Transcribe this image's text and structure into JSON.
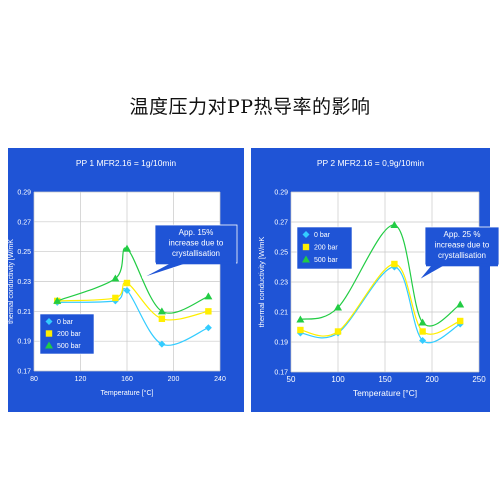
{
  "page": {
    "title": "温度压力对PP热导率的影响"
  },
  "colors": {
    "panel_bg": "#1f54d6",
    "plot_bg": "#ffffff",
    "grid": "#c8c8c8",
    "series": [
      "#33ccff",
      "#ffee00",
      "#22cc44"
    ]
  },
  "chart_data": [
    {
      "type": "scatter",
      "title": "PP 1 MFR2.16 = 1g/10min",
      "xlabel": "Temperature [°C]",
      "ylabel": "thermal conductivity [W/mK",
      "xlim": [
        80,
        240
      ],
      "ylim": [
        0.17,
        0.29
      ],
      "xticks": [
        80,
        120,
        160,
        200,
        240
      ],
      "yticks": [
        0.17,
        0.19,
        0.21,
        0.23,
        0.25,
        0.27,
        0.29
      ],
      "grid": true,
      "legend_position": "bottom-left",
      "series": [
        {
          "name": "0 bar",
          "marker": "diamond",
          "x": [
            100,
            150,
            160,
            190,
            230
          ],
          "y": [
            0.216,
            0.217,
            0.224,
            0.188,
            0.199
          ]
        },
        {
          "name": "200 bar",
          "marker": "square",
          "x": [
            100,
            150,
            160,
            190,
            230
          ],
          "y": [
            0.217,
            0.219,
            0.229,
            0.205,
            0.21
          ]
        },
        {
          "name": "500 bar",
          "marker": "triangle",
          "x": [
            100,
            150,
            160,
            190,
            230
          ],
          "y": [
            0.217,
            0.232,
            0.252,
            0.21,
            0.22
          ]
        }
      ],
      "annotation": {
        "text": [
          "App. 15%",
          "increase due to",
          "crystallisation"
        ]
      }
    },
    {
      "type": "scatter",
      "title": "PP 2 MFR2.16 = 0,9g/10min",
      "xlabel": "Temperature [°C]",
      "ylabel": "thermal conductivity [W/mK",
      "xlim": [
        50,
        250
      ],
      "ylim": [
        0.17,
        0.29
      ],
      "xticks": [
        50,
        100,
        150,
        200,
        250
      ],
      "yticks": [
        0.17,
        0.19,
        0.21,
        0.23,
        0.25,
        0.27,
        0.29
      ],
      "grid": true,
      "legend_position": "left",
      "series": [
        {
          "name": "0 bar",
          "marker": "diamond",
          "x": [
            60,
            100,
            160,
            190,
            230
          ],
          "y": [
            0.196,
            0.196,
            0.24,
            0.191,
            0.202
          ]
        },
        {
          "name": "200 bar",
          "marker": "square",
          "x": [
            60,
            100,
            160,
            190,
            230
          ],
          "y": [
            0.198,
            0.197,
            0.242,
            0.197,
            0.204
          ]
        },
        {
          "name": "500 bar",
          "marker": "triangle",
          "x": [
            60,
            100,
            160,
            190,
            230
          ],
          "y": [
            0.205,
            0.213,
            0.268,
            0.203,
            0.215
          ]
        }
      ],
      "annotation": {
        "text": [
          "App. 25 %",
          "increase due to",
          "crystallisation"
        ]
      }
    }
  ]
}
